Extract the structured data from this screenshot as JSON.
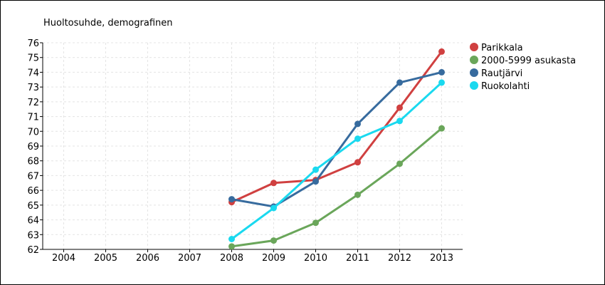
{
  "chart_data": {
    "type": "line",
    "title": "Huoltosuhde, demografinen",
    "categories": [
      "2004",
      "2005",
      "2006",
      "2007",
      "2008",
      "2009",
      "2010",
      "2011",
      "2012",
      "2013"
    ],
    "ylim": [
      62,
      76
    ],
    "yticks": [
      "62",
      "63",
      "64",
      "65",
      "66",
      "67",
      "68",
      "69",
      "70",
      "71",
      "72",
      "73",
      "74",
      "75",
      "76"
    ],
    "grid": true,
    "legend_position": "right",
    "series": [
      {
        "name": "Parikkala",
        "color": "#d04040",
        "values": [
          null,
          null,
          null,
          null,
          65.2,
          66.5,
          66.7,
          67.9,
          71.6,
          75.4
        ]
      },
      {
        "name": "2000-5999 asukasta",
        "color": "#6aa65a",
        "values": [
          null,
          null,
          null,
          null,
          62.2,
          62.6,
          63.8,
          65.7,
          67.8,
          70.2
        ]
      },
      {
        "name": "Rautjärvi",
        "color": "#376b9e",
        "values": [
          null,
          null,
          null,
          null,
          65.4,
          64.9,
          66.6,
          70.5,
          73.3,
          74.0
        ]
      },
      {
        "name": "Ruokolahti",
        "color": "#1ad9ef",
        "values": [
          null,
          null,
          null,
          null,
          62.7,
          64.8,
          67.4,
          69.5,
          70.7,
          73.3
        ]
      }
    ]
  }
}
